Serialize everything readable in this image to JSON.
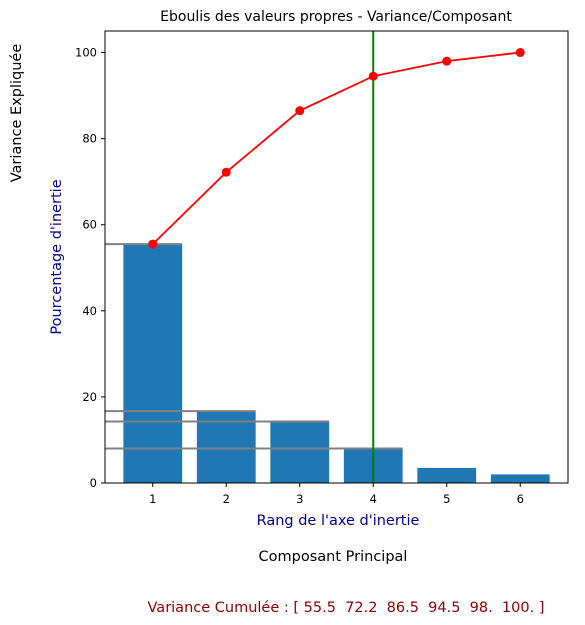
{
  "chart_data": {
    "type": "bar",
    "title": "Eboulis des valeurs propres - Variance/Composant",
    "outer_ylabel": "Variance Expliquée",
    "ylabel": "Pourcentage d'inertie",
    "xlabel": "Rang de l'axe d'inertie",
    "outer_xlabel": "Composant Principal",
    "footer_text": "Variance Cumulée : [ 55.5  72.2  86.5  94.5  98.  100. ]",
    "categories": [
      1,
      2,
      3,
      4,
      5,
      6
    ],
    "series": [
      {
        "values": [
          55.5,
          16.7,
          14.3,
          8.0,
          3.5,
          2.0
        ],
        "color": "#1f77b4"
      },
      {
        "values": [
          55.5,
          72.2,
          86.5,
          94.5,
          98.0,
          100.0
        ],
        "color": "#ff0000",
        "marker": "circle"
      }
    ],
    "reference_lines": {
      "horizontal_values": [
        55.5,
        16.7,
        14.3,
        8.0
      ],
      "horizontal_color": "#808080",
      "vertical_at_x": 4,
      "vertical_color": "#008000"
    },
    "ylim": [
      0,
      105
    ],
    "yticks": [
      0,
      20,
      40,
      60,
      80,
      100
    ],
    "xticks": [
      1,
      2,
      3,
      4,
      5,
      6
    ],
    "grid": false,
    "colors": {
      "axis_label_blue": "#00008b",
      "footer_red": "#8b0000",
      "text": "#000000"
    }
  }
}
